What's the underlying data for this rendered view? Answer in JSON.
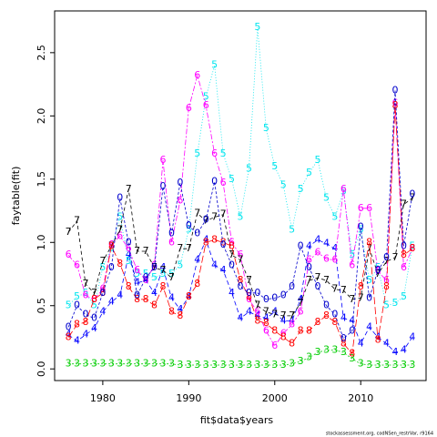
{
  "chart_data": {
    "type": "line",
    "x_label": "fit$data$years",
    "y_label": "faytable(fit)",
    "footer": "stockassessment.org, codNSen_restrVar, r9164",
    "x": [
      1976,
      1977,
      1978,
      1979,
      1980,
      1981,
      1982,
      1983,
      1984,
      1985,
      1986,
      1987,
      1988,
      1989,
      1990,
      1991,
      1992,
      1993,
      1994,
      1995,
      1996,
      1997,
      1998,
      1999,
      2000,
      2001,
      2002,
      2003,
      2004,
      2005,
      2006,
      2007,
      2008,
      2009,
      2010,
      2011,
      2012,
      2013,
      2014,
      2015,
      2016
    ],
    "xlim": [
      1974.4,
      2017.6
    ],
    "xticks": [
      1980,
      1990,
      2000,
      2010
    ],
    "ylim": [
      -0.092,
      2.83
    ],
    "yticks": [
      {
        "value": 0,
        "label": "0.0"
      },
      {
        "value": 0.5,
        "label": "0.5"
      },
      {
        "value": 1,
        "label": "1.0"
      },
      {
        "value": 1.5,
        "label": "1.5"
      },
      {
        "value": 2,
        "label": "2.0"
      },
      {
        "value": 2.5,
        "label": "2.5"
      }
    ],
    "series": [
      {
        "pch": "3",
        "color": "#00cd00",
        "values": [
          0.04,
          0.04,
          0.04,
          0.04,
          0.04,
          0.04,
          0.04,
          0.04,
          0.04,
          0.04,
          0.04,
          0.04,
          0.04,
          0.03,
          0.03,
          0.03,
          0.03,
          0.03,
          0.03,
          0.03,
          0.03,
          0.03,
          0.03,
          0.03,
          0.03,
          0.03,
          0.04,
          0.06,
          0.09,
          0.13,
          0.15,
          0.15,
          0.13,
          0.08,
          0.04,
          0.03,
          0.03,
          0.03,
          0.03,
          0.03,
          0.03
        ]
      },
      {
        "pch": "4",
        "color": "#0000ff",
        "values": [
          0.27,
          0.22,
          0.27,
          0.32,
          0.45,
          0.53,
          0.58,
          0.9,
          0.68,
          0.7,
          0.6,
          0.8,
          0.56,
          0.47,
          0.57,
          0.86,
          1.02,
          0.82,
          0.78,
          0.6,
          0.4,
          0.45,
          0.42,
          0.4,
          0.45,
          0.38,
          0.38,
          0.55,
          0.97,
          1.02,
          0.99,
          0.95,
          0.4,
          0.38,
          0.2,
          0.33,
          0.25,
          0.2,
          0.13,
          0.15,
          0.25
        ]
      },
      {
        "pch": "5",
        "color": "#00e5ee",
        "values": [
          0.5,
          0.57,
          0.6,
          0.5,
          0.8,
          0.95,
          1.2,
          0.85,
          0.75,
          0.75,
          0.72,
          0.75,
          0.75,
          0.82,
          1.1,
          1.7,
          2.15,
          2.4,
          1.7,
          1.5,
          1.2,
          1.58,
          2.7,
          1.9,
          1.6,
          1.45,
          1.1,
          1.42,
          1.55,
          1.65,
          1.35,
          1.2,
          1.4,
          0.9,
          1.1,
          0.7,
          0.8,
          0.5,
          0.52,
          0.57,
          0.97
        ]
      },
      {
        "pch": "6",
        "color": "#ff00ff",
        "values": [
          0.9,
          0.82,
          0.58,
          0.55,
          0.63,
          0.98,
          1.05,
          0.95,
          0.78,
          0.7,
          0.82,
          1.65,
          1.0,
          1.33,
          2.06,
          2.32,
          2.08,
          1.7,
          1.47,
          1.0,
          0.9,
          0.55,
          0.45,
          0.3,
          0.18,
          0.28,
          0.35,
          0.45,
          0.86,
          0.92,
          0.87,
          0.86,
          1.42,
          0.82,
          1.27,
          1.27,
          0.77,
          0.7,
          2.1,
          0.8,
          0.95
        ]
      },
      {
        "pch": "7",
        "color": "#000000",
        "values": [
          1.08,
          1.17,
          0.67,
          0.6,
          0.85,
          0.97,
          1.1,
          1.42,
          0.93,
          0.93,
          0.8,
          0.78,
          0.72,
          0.95,
          0.95,
          1.23,
          1.17,
          1.2,
          1.22,
          0.9,
          0.86,
          0.7,
          0.5,
          0.45,
          0.43,
          0.42,
          0.42,
          0.52,
          0.7,
          0.72,
          0.7,
          0.63,
          0.62,
          0.55,
          0.56,
          0.95,
          0.75,
          0.85,
          0.88,
          1.3,
          1.35
        ]
      },
      {
        "pch": "8",
        "color": "#ff0000",
        "values": [
          0.25,
          0.35,
          0.37,
          0.55,
          0.6,
          0.97,
          0.83,
          0.65,
          0.55,
          0.55,
          0.5,
          0.65,
          0.45,
          0.42,
          0.57,
          0.67,
          1.0,
          1.02,
          1.0,
          0.97,
          0.7,
          0.57,
          0.38,
          0.36,
          0.3,
          0.25,
          0.2,
          0.3,
          0.3,
          0.37,
          0.42,
          0.37,
          0.2,
          0.12,
          0.65,
          1.0,
          0.23,
          0.65,
          2.08,
          0.9,
          0.95
        ]
      },
      {
        "pch": "0",
        "color": "#0000cd",
        "values": [
          0.33,
          0.5,
          0.43,
          0.4,
          0.6,
          0.8,
          1.35,
          1.0,
          0.58,
          0.72,
          0.8,
          1.44,
          1.07,
          1.47,
          1.13,
          1.07,
          1.18,
          1.48,
          0.98,
          0.82,
          0.65,
          0.6,
          0.6,
          0.55,
          0.56,
          0.58,
          0.65,
          0.97,
          0.8,
          0.65,
          0.5,
          0.43,
          0.24,
          0.3,
          1.12,
          0.56,
          0.78,
          0.88,
          2.2,
          0.97,
          1.38
        ]
      }
    ]
  }
}
